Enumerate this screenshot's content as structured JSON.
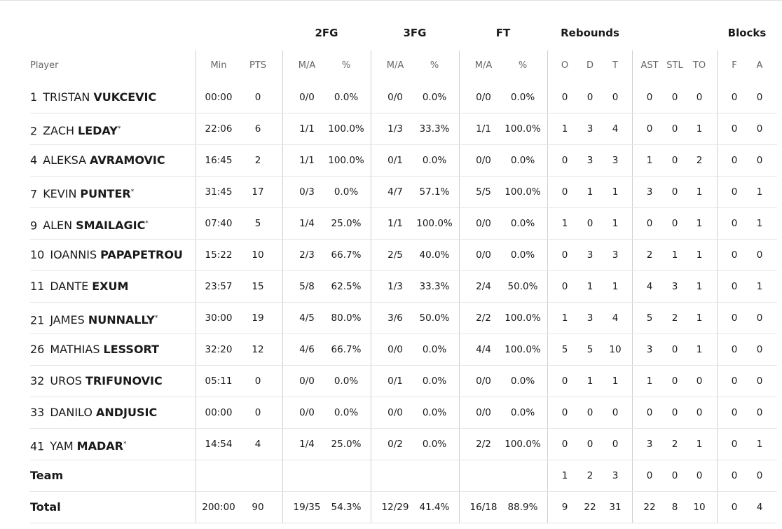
{
  "table": {
    "groups": [
      "2FG",
      "3FG",
      "FT",
      "Rebounds",
      "Blocks"
    ],
    "columns": [
      "Player",
      "Min",
      "PTS",
      "M/A",
      "%",
      "M/A",
      "%",
      "M/A",
      "%",
      "O",
      "D",
      "T",
      "AST",
      "STL",
      "TO",
      "F",
      "A"
    ],
    "players": [
      {
        "number": "1",
        "first": "TRISTAN",
        "last": "VUKCEVIC",
        "stats": [
          "00:00",
          "0",
          "0/0",
          "0.0%",
          "0/0",
          "0.0%",
          "0/0",
          "0.0%",
          "0",
          "0",
          "0",
          "0",
          "0",
          "0",
          "0",
          "0"
        ]
      },
      {
        "number": "2",
        "first": "ZACH",
        "last": "LEDAY",
        "starter": "*",
        "stats": [
          "22:06",
          "6",
          "1/1",
          "100.0%",
          "1/3",
          "33.3%",
          "1/1",
          "100.0%",
          "1",
          "3",
          "4",
          "0",
          "0",
          "1",
          "0",
          "0"
        ]
      },
      {
        "number": "4",
        "first": "ALEKSA",
        "last": "AVRAMOVIC",
        "stats": [
          "16:45",
          "2",
          "1/1",
          "100.0%",
          "0/1",
          "0.0%",
          "0/0",
          "0.0%",
          "0",
          "3",
          "3",
          "1",
          "0",
          "2",
          "0",
          "0"
        ]
      },
      {
        "number": "7",
        "first": "KEVIN",
        "last": "PUNTER",
        "starter": "*",
        "stats": [
          "31:45",
          "17",
          "0/3",
          "0.0%",
          "4/7",
          "57.1%",
          "5/5",
          "100.0%",
          "0",
          "1",
          "1",
          "3",
          "0",
          "1",
          "0",
          "1"
        ]
      },
      {
        "number": "9",
        "first": "ALEN",
        "last": "SMAILAGIC",
        "starter": "*",
        "stats": [
          "07:40",
          "5",
          "1/4",
          "25.0%",
          "1/1",
          "100.0%",
          "0/0",
          "0.0%",
          "1",
          "0",
          "1",
          "0",
          "0",
          "1",
          "0",
          "1"
        ]
      },
      {
        "number": "10",
        "first": "IOANNIS",
        "last": "PAPAPETROU",
        "stats": [
          "15:22",
          "10",
          "2/3",
          "66.7%",
          "2/5",
          "40.0%",
          "0/0",
          "0.0%",
          "0",
          "3",
          "3",
          "2",
          "1",
          "1",
          "0",
          "0"
        ]
      },
      {
        "number": "11",
        "first": "DANTE",
        "last": "EXUM",
        "stats": [
          "23:57",
          "15",
          "5/8",
          "62.5%",
          "1/3",
          "33.3%",
          "2/4",
          "50.0%",
          "0",
          "1",
          "1",
          "4",
          "3",
          "1",
          "0",
          "1"
        ]
      },
      {
        "number": "21",
        "first": "JAMES",
        "last": "NUNNALLY",
        "starter": "*",
        "stats": [
          "30:00",
          "19",
          "4/5",
          "80.0%",
          "3/6",
          "50.0%",
          "2/2",
          "100.0%",
          "1",
          "3",
          "4",
          "5",
          "2",
          "1",
          "0",
          "0"
        ]
      },
      {
        "number": "26",
        "first": "MATHIAS",
        "last": "LESSORT",
        "stats": [
          "32:20",
          "12",
          "4/6",
          "66.7%",
          "0/0",
          "0.0%",
          "4/4",
          "100.0%",
          "5",
          "5",
          "10",
          "3",
          "0",
          "1",
          "0",
          "0"
        ]
      },
      {
        "number": "32",
        "first": "UROS",
        "last": "TRIFUNOVIC",
        "stats": [
          "05:11",
          "0",
          "0/0",
          "0.0%",
          "0/1",
          "0.0%",
          "0/0",
          "0.0%",
          "0",
          "1",
          "1",
          "1",
          "0",
          "0",
          "0",
          "0"
        ]
      },
      {
        "number": "33",
        "first": "DANILO",
        "last": "ANDJUSIC",
        "stats": [
          "00:00",
          "0",
          "0/0",
          "0.0%",
          "0/0",
          "0.0%",
          "0/0",
          "0.0%",
          "0",
          "0",
          "0",
          "0",
          "0",
          "0",
          "0",
          "0"
        ]
      },
      {
        "number": "41",
        "first": "YAM",
        "last": "MADAR",
        "starter": "*",
        "stats": [
          "14:54",
          "4",
          "1/4",
          "25.0%",
          "0/2",
          "0.0%",
          "2/2",
          "100.0%",
          "0",
          "0",
          "0",
          "3",
          "2",
          "1",
          "0",
          "1"
        ]
      }
    ],
    "team": {
      "label": "Team",
      "stats": [
        null,
        null,
        null,
        null,
        null,
        null,
        null,
        null,
        "1",
        "2",
        "3",
        "0",
        "0",
        "0",
        "0",
        "0"
      ]
    },
    "total": {
      "label": "Total",
      "stats": [
        "200:00",
        "90",
        "19/35",
        "54.3%",
        "12/29",
        "41.4%",
        "16/18",
        "88.9%",
        "9",
        "22",
        "31",
        "22",
        "8",
        "10",
        "0",
        "4"
      ]
    }
  }
}
